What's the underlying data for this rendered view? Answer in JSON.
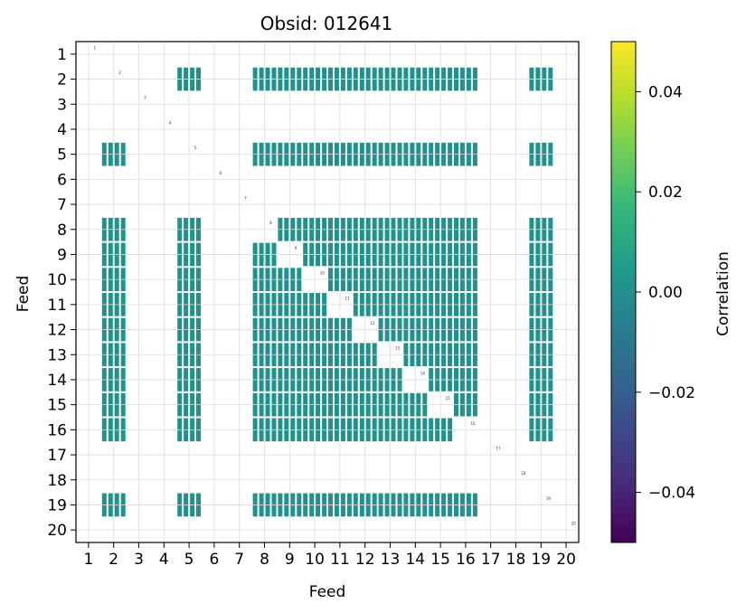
{
  "chart_data": {
    "type": "heatmap",
    "title": "Obsid: 012641",
    "xlabel": "Feed",
    "ylabel": "Feed",
    "x_ticks": [
      "1",
      "2",
      "3",
      "4",
      "5",
      "6",
      "7",
      "8",
      "9",
      "10",
      "11",
      "12",
      "13",
      "14",
      "15",
      "16",
      "17",
      "18",
      "19",
      "20"
    ],
    "y_ticks": [
      "1",
      "2",
      "3",
      "4",
      "5",
      "6",
      "7",
      "8",
      "9",
      "10",
      "11",
      "12",
      "13",
      "14",
      "15",
      "16",
      "17",
      "18",
      "19",
      "20"
    ],
    "grid": true,
    "colorbar": {
      "label": "Correlation",
      "colormap": "viridis",
      "vmin": -0.05,
      "vmax": 0.05,
      "ticks": [
        "0.04",
        "0.02",
        "0.00",
        "−0.02",
        "−0.04"
      ],
      "tick_values": [
        0.04,
        0.02,
        0.0,
        -0.02,
        -0.04
      ],
      "colors": [
        "#440154",
        "#482878",
        "#3e4989",
        "#31688e",
        "#26828e",
        "#1f9e89",
        "#35b779",
        "#6ece58",
        "#b5de2b",
        "#fde725"
      ]
    },
    "cell_color": "#21918c",
    "active_feeds": [
      "2",
      "5",
      "8",
      "9",
      "10",
      "11",
      "12",
      "13",
      "14",
      "15",
      "16",
      "19"
    ],
    "cell_value": 0.0,
    "diagonal_labels": [
      "1",
      "2",
      "3",
      "4",
      "5",
      "6",
      "7",
      "8",
      "9",
      "10",
      "11",
      "12",
      "13",
      "14",
      "15",
      "16",
      "17",
      "18",
      "19",
      "20"
    ]
  }
}
